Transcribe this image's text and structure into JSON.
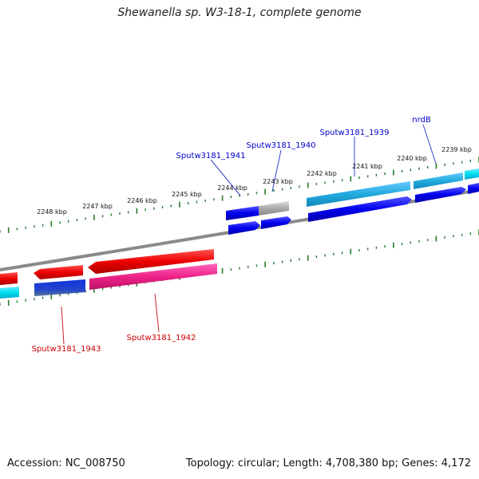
{
  "title": "Shewanella sp. W3-18-1, complete genome",
  "footer": {
    "accession": "Accession: NC_008750",
    "topology": "Topology: circular; Length: 4,708,380 bp; Genes: 4,172"
  },
  "ticks": [
    {
      "label": "2239 kbp"
    },
    {
      "label": "2240 kbp"
    },
    {
      "label": "2241 kbp"
    },
    {
      "label": "2242 kbp"
    },
    {
      "label": "2243 kbp"
    },
    {
      "label": "2244 kbp"
    },
    {
      "label": "2245 kbp"
    },
    {
      "label": "2246 kbp"
    },
    {
      "label": "2247 kbp"
    },
    {
      "label": "2248 kbp"
    }
  ],
  "gene_labels": {
    "nrdB": "nrdB",
    "sputw1939": "Sputw3181_1939",
    "sputw1940": "Sputw3181_1940",
    "sputw1941": "Sputw3181_1941",
    "sputw1942": "Sputw3181_1942",
    "sputw1943": "Sputw3181_1943"
  },
  "colors": {
    "forward_label": "#0000cc",
    "reverse_label": "#cc0000",
    "backbone": "#888888",
    "tick": "#2a7a2a",
    "cds_blue": "#0000ee",
    "cds_light_blue": "#33bbee",
    "cds_cyan": "#22ddee",
    "cds_red": "#ee0000",
    "cds_pink": "#ee2288",
    "cds_gray": "#aaaaaa"
  }
}
